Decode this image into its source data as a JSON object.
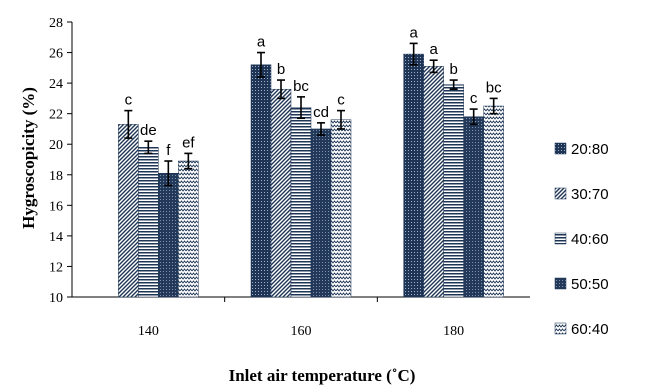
{
  "chart_data": {
    "type": "bar",
    "title": "",
    "xlabel": "Inlet air temperature (˚C)",
    "ylabel": "Hygroscopicity (%)",
    "ylim": [
      10,
      28
    ],
    "yticks": [
      "10",
      "12",
      "14",
      "16",
      "18",
      "20",
      "22",
      "24",
      "26",
      "28"
    ],
    "categories": [
      "140",
      "160",
      "180"
    ],
    "legend_position": "right",
    "grid": false,
    "series": [
      {
        "name": "20:80",
        "pattern": "dots-dark",
        "values": [
          null,
          25.2,
          25.9
        ],
        "errors": [
          null,
          0.8,
          0.7
        ],
        "letters": [
          "",
          "a",
          "a"
        ]
      },
      {
        "name": "30:70",
        "pattern": "diagonal",
        "values": [
          21.3,
          23.6,
          25.1
        ],
        "errors": [
          0.9,
          0.6,
          0.4
        ],
        "letters": [
          "c",
          "b",
          "a"
        ]
      },
      {
        "name": "40:60",
        "pattern": "horizontal",
        "values": [
          19.8,
          22.4,
          23.9
        ],
        "errors": [
          0.4,
          0.7,
          0.3
        ],
        "letters": [
          "de",
          "bc",
          "b"
        ]
      },
      {
        "name": "50:50",
        "pattern": "grid",
        "values": [
          18.1,
          21.0,
          21.8
        ],
        "errors": [
          0.8,
          0.4,
          0.5
        ],
        "letters": [
          "f",
          "cd",
          "c"
        ]
      },
      {
        "name": "60:40",
        "pattern": "wave",
        "values": [
          18.9,
          21.6,
          22.5
        ],
        "errors": [
          0.5,
          0.6,
          0.5
        ],
        "letters": [
          "ef",
          "c",
          "bc"
        ]
      }
    ]
  }
}
